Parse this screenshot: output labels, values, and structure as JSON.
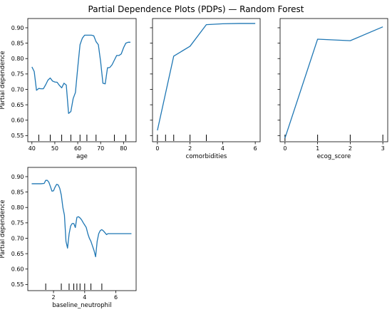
{
  "chart_data": {
    "type": "line",
    "title": "Partial Dependence Plots (PDPs) — Random Forest",
    "ylabel": "Partial dependence",
    "ylim": [
      0.53,
      0.93
    ],
    "yticks": [
      0.55,
      0.6,
      0.65,
      0.7,
      0.75,
      0.8,
      0.85,
      0.9
    ],
    "line_color": "#1f77b4",
    "panels": [
      {
        "feature": "age",
        "xlabel": "age",
        "xlim": [
          38.2,
          85.5
        ],
        "xticks": [
          40,
          50,
          60,
          70,
          80
        ],
        "show_ylabel": true,
        "show_yticklabels": true,
        "x": [
          40,
          41,
          42,
          43,
          44,
          45,
          46,
          47,
          48,
          49,
          50,
          51,
          52,
          53,
          54,
          55,
          56,
          57,
          58,
          59,
          60,
          61,
          62,
          63,
          64,
          65,
          66,
          67,
          68,
          69,
          70,
          71,
          72,
          73,
          74,
          75,
          76,
          77,
          78,
          79,
          80,
          81,
          82,
          83
        ],
        "y": [
          0.773,
          0.758,
          0.697,
          0.703,
          0.702,
          0.702,
          0.715,
          0.73,
          0.737,
          0.727,
          0.724,
          0.723,
          0.713,
          0.705,
          0.72,
          0.714,
          0.622,
          0.628,
          0.67,
          0.69,
          0.77,
          0.845,
          0.866,
          0.876,
          0.876,
          0.876,
          0.876,
          0.874,
          0.855,
          0.845,
          0.79,
          0.72,
          0.718,
          0.77,
          0.771,
          0.78,
          0.795,
          0.81,
          0.81,
          0.815,
          0.835,
          0.85,
          0.853,
          0.853
        ],
        "deciles": [
          43,
          48,
          53,
          57,
          61,
          64,
          68,
          76,
          81
        ]
      },
      {
        "feature": "comorbidities",
        "xlabel": "comorbidities",
        "xlim": [
          -0.3,
          6.3
        ],
        "xticks": [
          0,
          2,
          4,
          6
        ],
        "show_ylabel": false,
        "show_yticklabels": false,
        "x": [
          0,
          1,
          2,
          3,
          4,
          5,
          6
        ],
        "y": [
          0.567,
          0.808,
          0.84,
          0.91,
          0.913,
          0.914,
          0.914
        ],
        "deciles": [
          0,
          0.5,
          1,
          2,
          3
        ]
      },
      {
        "feature": "ecog_score",
        "xlabel": "ecog_score",
        "xlim": [
          -0.15,
          3.15
        ],
        "xticks": [
          0,
          1,
          2,
          3
        ],
        "show_ylabel": false,
        "show_yticklabels": false,
        "x": [
          0,
          1,
          2,
          3
        ],
        "y": [
          0.542,
          0.863,
          0.858,
          0.903
        ],
        "deciles": [
          0,
          1,
          2,
          3
        ]
      },
      {
        "feature": "baseline_neutrophil",
        "xlabel": "baseline_neutrophil",
        "xlim": [
          0.35,
          7.3
        ],
        "xticks": [
          2,
          4,
          6
        ],
        "show_ylabel": true,
        "show_yticklabels": true,
        "x": [
          0.6,
          0.8,
          1.0,
          1.2,
          1.4,
          1.5,
          1.6,
          1.7,
          1.8,
          1.9,
          2.0,
          2.1,
          2.2,
          2.3,
          2.4,
          2.5,
          2.6,
          2.7,
          2.8,
          2.9,
          3.0,
          3.1,
          3.2,
          3.3,
          3.4,
          3.5,
          3.6,
          3.7,
          3.8,
          3.9,
          4.0,
          4.1,
          4.2,
          4.3,
          4.4,
          4.5,
          4.6,
          4.7,
          4.8,
          4.9,
          5.0,
          5.1,
          5.2,
          5.3,
          5.4,
          5.5,
          5.6,
          5.8,
          6.0,
          6.5,
          7.0
        ],
        "y": [
          0.877,
          0.877,
          0.877,
          0.877,
          0.878,
          0.888,
          0.888,
          0.882,
          0.868,
          0.853,
          0.854,
          0.866,
          0.875,
          0.873,
          0.862,
          0.84,
          0.8,
          0.775,
          0.69,
          0.668,
          0.714,
          0.74,
          0.748,
          0.748,
          0.735,
          0.768,
          0.77,
          0.766,
          0.76,
          0.751,
          0.743,
          0.735,
          0.715,
          0.7,
          0.69,
          0.675,
          0.66,
          0.64,
          0.69,
          0.715,
          0.725,
          0.728,
          0.724,
          0.718,
          0.712,
          0.715,
          0.715,
          0.715,
          0.715,
          0.715,
          0.715
        ],
        "deciles": [
          1.5,
          2.5,
          3.0,
          3.3,
          3.5,
          3.7,
          4.0,
          4.4,
          5.1
        ]
      }
    ]
  }
}
